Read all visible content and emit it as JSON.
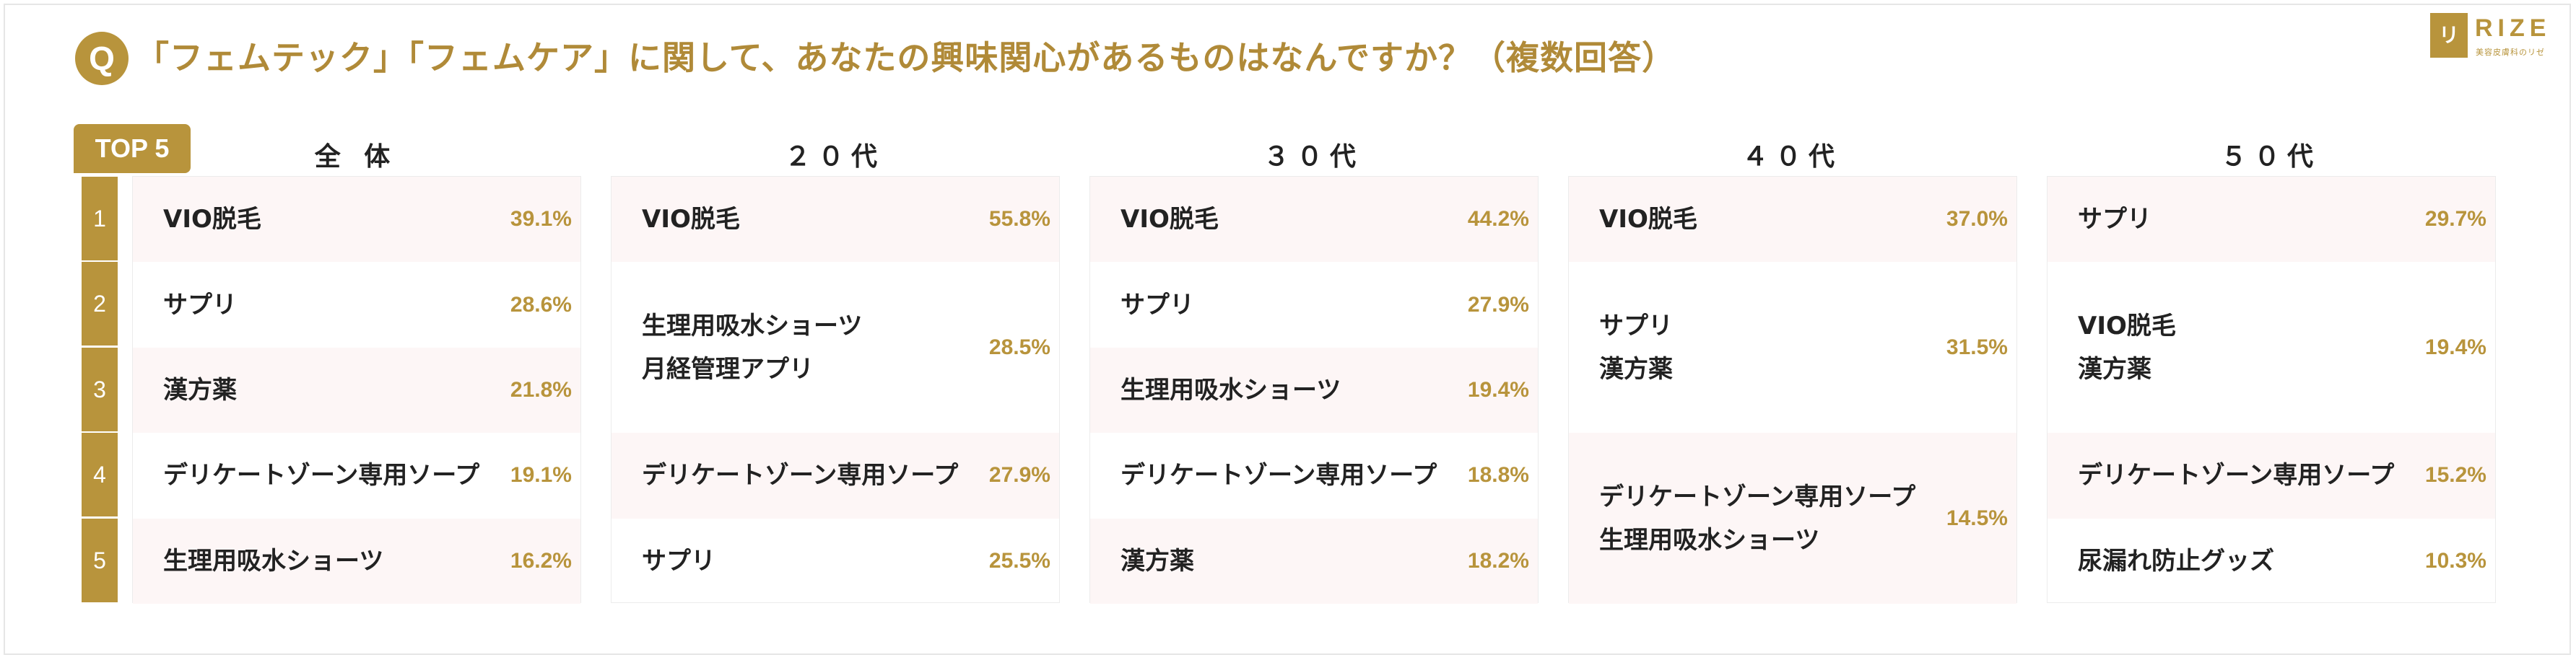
{
  "header": {
    "badge": "Q",
    "question": "「フェムテック」「フェムケア」に関して、あなたの興味関心があるものはなんですか？（複数回答）"
  },
  "logo": {
    "mark": "リゼ",
    "word": "RIZE",
    "sub": "美容皮膚科のリゼ"
  },
  "tag": "TOP 5",
  "ranks": [
    "1",
    "2",
    "3",
    "4",
    "5"
  ],
  "columns": [
    {
      "title": "全 体",
      "rows": [
        {
          "labels": [
            "VIO脱毛"
          ],
          "pct": "39.1%"
        },
        {
          "labels": [
            "サプリ"
          ],
          "pct": "28.6%"
        },
        {
          "labels": [
            "漢方薬"
          ],
          "pct": "21.8%"
        },
        {
          "labels": [
            "デリケートゾーン専用ソープ"
          ],
          "pct": "19.1%"
        },
        {
          "labels": [
            "生理用吸水ショーツ"
          ],
          "pct": "16.2%"
        }
      ]
    },
    {
      "title": "２０代",
      "rows": [
        {
          "labels": [
            "VIO脱毛"
          ],
          "pct": "55.8%"
        },
        {
          "labels": [
            "生理用吸水ショーツ",
            "月経管理アプリ"
          ],
          "pct": "28.5%"
        },
        {
          "labels": [
            "デリケートゾーン専用ソープ"
          ],
          "pct": "27.9%"
        },
        {
          "labels": [
            "サプリ"
          ],
          "pct": "25.5%"
        }
      ]
    },
    {
      "title": "３０代",
      "rows": [
        {
          "labels": [
            "VIO脱毛"
          ],
          "pct": "44.2%"
        },
        {
          "labels": [
            "サプリ"
          ],
          "pct": "27.9%"
        },
        {
          "labels": [
            "生理用吸水ショーツ"
          ],
          "pct": "19.4%"
        },
        {
          "labels": [
            "デリケートゾーン専用ソープ"
          ],
          "pct": "18.8%"
        },
        {
          "labels": [
            "漢方薬"
          ],
          "pct": "18.2%"
        }
      ]
    },
    {
      "title": "４０代",
      "rows": [
        {
          "labels": [
            "VIO脱毛"
          ],
          "pct": "37.0%"
        },
        {
          "labels": [
            "サプリ",
            "漢方薬"
          ],
          "pct": "31.5%"
        },
        {
          "labels": [
            "デリケートゾーン専用ソープ",
            "生理用吸水ショーツ"
          ],
          "pct": "14.5%"
        }
      ]
    },
    {
      "title": "５０代",
      "rows": [
        {
          "labels": [
            "サプリ"
          ],
          "pct": "29.7%"
        },
        {
          "labels": [
            "VIO脱毛",
            "漢方薬"
          ],
          "pct": "19.4%"
        },
        {
          "labels": [
            "デリケートゾーン専用ソープ"
          ],
          "pct": "15.2%"
        },
        {
          "labels": [
            "尿漏れ防止グッズ"
          ],
          "pct": "10.3%"
        }
      ]
    }
  ],
  "colors": {
    "accent": "#b8943c",
    "title": "#b08a38",
    "row_tint": "#fdf6f6"
  }
}
